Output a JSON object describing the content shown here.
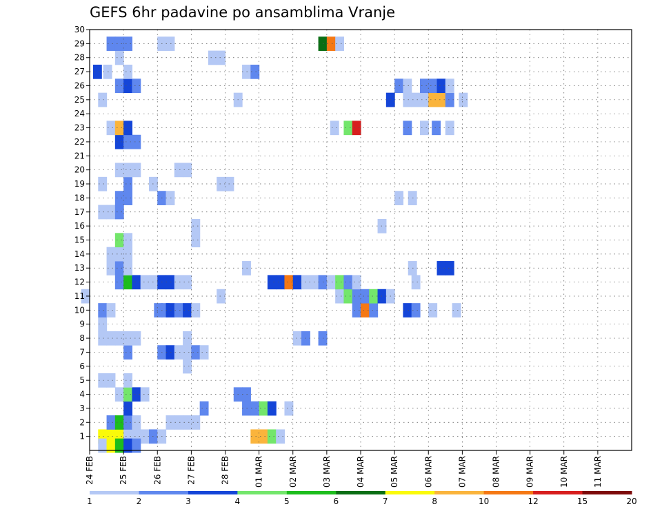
{
  "chart_data": {
    "type": "heatmap",
    "title": "GEFS 6hr padavine po ansamblima Vranje",
    "xlabel": "",
    "ylabel": "",
    "x_tick_labels": [
      "24 FEB",
      "25 FEB",
      "26 FEB",
      "27 FEB",
      "28 FEB",
      "01 MAR",
      "02 MAR",
      "03 MAR",
      "04 MAR",
      "05 MAR",
      "06 MAR",
      "07 MAR",
      "08 MAR",
      "09 MAR",
      "10 MAR",
      "11 MAR"
    ],
    "y_tick_labels": [
      "1",
      "2",
      "3",
      "4",
      "5",
      "6",
      "7",
      "8",
      "9",
      "10",
      "11",
      "12",
      "13",
      "14",
      "15",
      "16",
      "17",
      "18",
      "19",
      "20",
      "21",
      "22",
      "23",
      "24",
      "25",
      "26",
      "27",
      "28",
      "29",
      "30"
    ],
    "time_step_hours": 6,
    "xlim_days": [
      0,
      16
    ],
    "ylim_members": [
      0,
      30
    ],
    "grid": true,
    "colorbar": {
      "position": "bottom",
      "levels": [
        1,
        2,
        3,
        4,
        5,
        6,
        7,
        8,
        10,
        12,
        15,
        20
      ],
      "colors": [
        "#b4c8f5",
        "#5f87ee",
        "#1445d8",
        "#73e66b",
        "#1cbd1c",
        "#0a6e14",
        "#fafa0a",
        "#fab43c",
        "#f57814",
        "#d71e1e",
        "#7d0a0a"
      ]
    },
    "cells": [
      {
        "m": 1,
        "s": [
          [
            13.25,
            7.5
          ],
          [
            13.5,
            7.5
          ],
          [
            13.75,
            7.5
          ],
          [
            14,
            1
          ],
          [
            14.25,
            1
          ],
          [
            14.5,
            1
          ],
          [
            14.75,
            2
          ],
          [
            15,
            1
          ]
        ]
      },
      {
        "m": 1,
        "s": [
          [
            17.75,
            8
          ],
          [
            18,
            8
          ],
          [
            18.25,
            4
          ],
          [
            18.5,
            1
          ]
        ]
      },
      {
        "m": 2,
        "s": [
          [
            13.5,
            2.5
          ],
          [
            13.75,
            5
          ],
          [
            14,
            2
          ],
          [
            14.25,
            1
          ],
          [
            15.25,
            1
          ],
          [
            15.5,
            1
          ],
          [
            15.75,
            1
          ],
          [
            16,
            1
          ]
        ]
      },
      {
        "m": 3,
        "s": [
          [
            14,
            3
          ],
          [
            16.25,
            2
          ],
          [
            17.5,
            2
          ],
          [
            17.75,
            2
          ],
          [
            18,
            4
          ],
          [
            18.25,
            3
          ],
          [
            18.75,
            1
          ]
        ]
      },
      {
        "m": 4,
        "s": [
          [
            13.75,
            1
          ],
          [
            14,
            4
          ],
          [
            14.25,
            3
          ],
          [
            14.5,
            1
          ],
          [
            17.25,
            2
          ],
          [
            17.5,
            2
          ]
        ]
      },
      {
        "m": 5,
        "s": [
          [
            13.25,
            1
          ],
          [
            13.5,
            1
          ],
          [
            14,
            1
          ]
        ]
      },
      {
        "m": 6,
        "s": [
          [
            15.75,
            1
          ]
        ]
      },
      {
        "m": 7,
        "s": [
          [
            14,
            2
          ],
          [
            15,
            2
          ],
          [
            15.25,
            3
          ],
          [
            15.5,
            1
          ],
          [
            15.75,
            1
          ],
          [
            16,
            2
          ],
          [
            16.25,
            1
          ]
        ]
      },
      {
        "m": 8,
        "s": [
          [
            13.25,
            1
          ],
          [
            13.5,
            1
          ],
          [
            13.75,
            1
          ],
          [
            14,
            1
          ],
          [
            14.25,
            1
          ],
          [
            15.75,
            1
          ],
          [
            19,
            1
          ],
          [
            19.25,
            2
          ],
          [
            19.75,
            2
          ]
        ]
      },
      {
        "m": 9,
        "s": [
          [
            13.25,
            1
          ]
        ]
      },
      {
        "m": 10,
        "s": [
          [
            13.25,
            2
          ],
          [
            13.5,
            1
          ],
          [
            14.9,
            2
          ],
          [
            15.1,
            2
          ],
          [
            15.25,
            3
          ],
          [
            15.5,
            2
          ],
          [
            15.75,
            3
          ],
          [
            16,
            1
          ],
          [
            20.75,
            2
          ],
          [
            21,
            10
          ],
          [
            21.25,
            2
          ],
          [
            22.25,
            3
          ],
          [
            22.5,
            2
          ],
          [
            23,
            1
          ],
          [
            23.7,
            1
          ]
        ]
      },
      {
        "m": 11,
        "s": [
          [
            12.75,
            1
          ],
          [
            16.75,
            1
          ],
          [
            20.25,
            1
          ],
          [
            20.5,
            4
          ],
          [
            20.75,
            2
          ],
          [
            21,
            2
          ],
          [
            21.25,
            4
          ],
          [
            21.5,
            3
          ],
          [
            21.75,
            1
          ]
        ]
      },
      {
        "m": 12,
        "s": [
          [
            13.75,
            2
          ],
          [
            14,
            5
          ],
          [
            14.25,
            3
          ],
          [
            14.5,
            1
          ],
          [
            14.75,
            1
          ],
          [
            15,
            3
          ],
          [
            15.25,
            3
          ],
          [
            15.5,
            1
          ],
          [
            15.75,
            1
          ],
          [
            18.25,
            3
          ],
          [
            18.5,
            3
          ],
          [
            18.75,
            10
          ],
          [
            19,
            3
          ],
          [
            19.25,
            1
          ],
          [
            19.5,
            1
          ],
          [
            19.75,
            2
          ],
          [
            20,
            1
          ],
          [
            20.25,
            4
          ],
          [
            20.5,
            2
          ],
          [
            20.75,
            1
          ],
          [
            22.5,
            1
          ]
        ]
      },
      {
        "m": 13,
        "s": [
          [
            13.5,
            1
          ],
          [
            13.75,
            2
          ],
          [
            14,
            1
          ],
          [
            17.5,
            1
          ],
          [
            22.4,
            1
          ],
          [
            23.25,
            3
          ],
          [
            23.5,
            3
          ]
        ]
      },
      {
        "m": 14,
        "s": [
          [
            13.5,
            1
          ],
          [
            13.75,
            1
          ],
          [
            14,
            1
          ]
        ]
      },
      {
        "m": 15,
        "s": [
          [
            13.75,
            4
          ],
          [
            14,
            1
          ],
          [
            16,
            1
          ]
        ]
      },
      {
        "m": 16,
        "s": [
          [
            16,
            1
          ],
          [
            21.5,
            1
          ]
        ]
      },
      {
        "m": 17,
        "s": [
          [
            13.25,
            1
          ],
          [
            13.5,
            1
          ],
          [
            13.75,
            2
          ]
        ]
      },
      {
        "m": 18,
        "s": [
          [
            13.75,
            2
          ],
          [
            14,
            2
          ],
          [
            15,
            2
          ],
          [
            15.25,
            1
          ],
          [
            22,
            1
          ],
          [
            22.4,
            1
          ]
        ]
      },
      {
        "m": 19,
        "s": [
          [
            13.25,
            1
          ],
          [
            14,
            2
          ],
          [
            14.75,
            1
          ],
          [
            16.75,
            1
          ],
          [
            17,
            1
          ]
        ]
      },
      {
        "m": 20,
        "s": [
          [
            13.75,
            1
          ],
          [
            14,
            1
          ],
          [
            14.25,
            1
          ],
          [
            15.5,
            1
          ],
          [
            15.75,
            1
          ]
        ]
      },
      {
        "m": 22,
        "s": [
          [
            13.75,
            3
          ],
          [
            14,
            2
          ],
          [
            14.25,
            2
          ]
        ]
      },
      {
        "m": 23,
        "s": [
          [
            13.5,
            1
          ],
          [
            13.75,
            9
          ],
          [
            14,
            3
          ],
          [
            20.1,
            1
          ],
          [
            20.5,
            4
          ],
          [
            20.75,
            12
          ],
          [
            22.25,
            2
          ],
          [
            22.75,
            1
          ],
          [
            23.1,
            2
          ],
          [
            23.5,
            1
          ]
        ]
      },
      {
        "m": 25,
        "s": [
          [
            13.25,
            1
          ],
          [
            17.25,
            1
          ],
          [
            21.75,
            3
          ],
          [
            22.25,
            1
          ],
          [
            22.5,
            1
          ],
          [
            22.75,
            1
          ],
          [
            23,
            9
          ],
          [
            23.25,
            9
          ],
          [
            23.5,
            2
          ],
          [
            23.9,
            1
          ]
        ]
      },
      {
        "m": 26,
        "s": [
          [
            13.75,
            2
          ],
          [
            14,
            3
          ],
          [
            14.25,
            2
          ],
          [
            22,
            2
          ],
          [
            22.25,
            1
          ],
          [
            22.75,
            2
          ],
          [
            23,
            2
          ],
          [
            23.25,
            3
          ],
          [
            23.5,
            1
          ]
        ]
      },
      {
        "m": 27,
        "s": [
          [
            13.1,
            3
          ],
          [
            13.4,
            1
          ],
          [
            14,
            1
          ],
          [
            17.5,
            1
          ],
          [
            17.75,
            2
          ]
        ]
      },
      {
        "m": 28,
        "s": [
          [
            13.75,
            1
          ],
          [
            16.5,
            1
          ],
          [
            16.75,
            1
          ]
        ]
      },
      {
        "m": 29,
        "s": [
          [
            13.5,
            2
          ],
          [
            13.75,
            2
          ],
          [
            14,
            2
          ],
          [
            15,
            1
          ],
          [
            15.25,
            1
          ],
          [
            19.75,
            6
          ],
          [
            20,
            10
          ],
          [
            20.25,
            1
          ]
        ]
      },
      {
        "m": 0.35,
        "s": [
          [
            13.25,
            1
          ],
          [
            13.5,
            7.5
          ],
          [
            13.75,
            5
          ],
          [
            14,
            3
          ],
          [
            14.25,
            2
          ]
        ]
      }
    ]
  }
}
